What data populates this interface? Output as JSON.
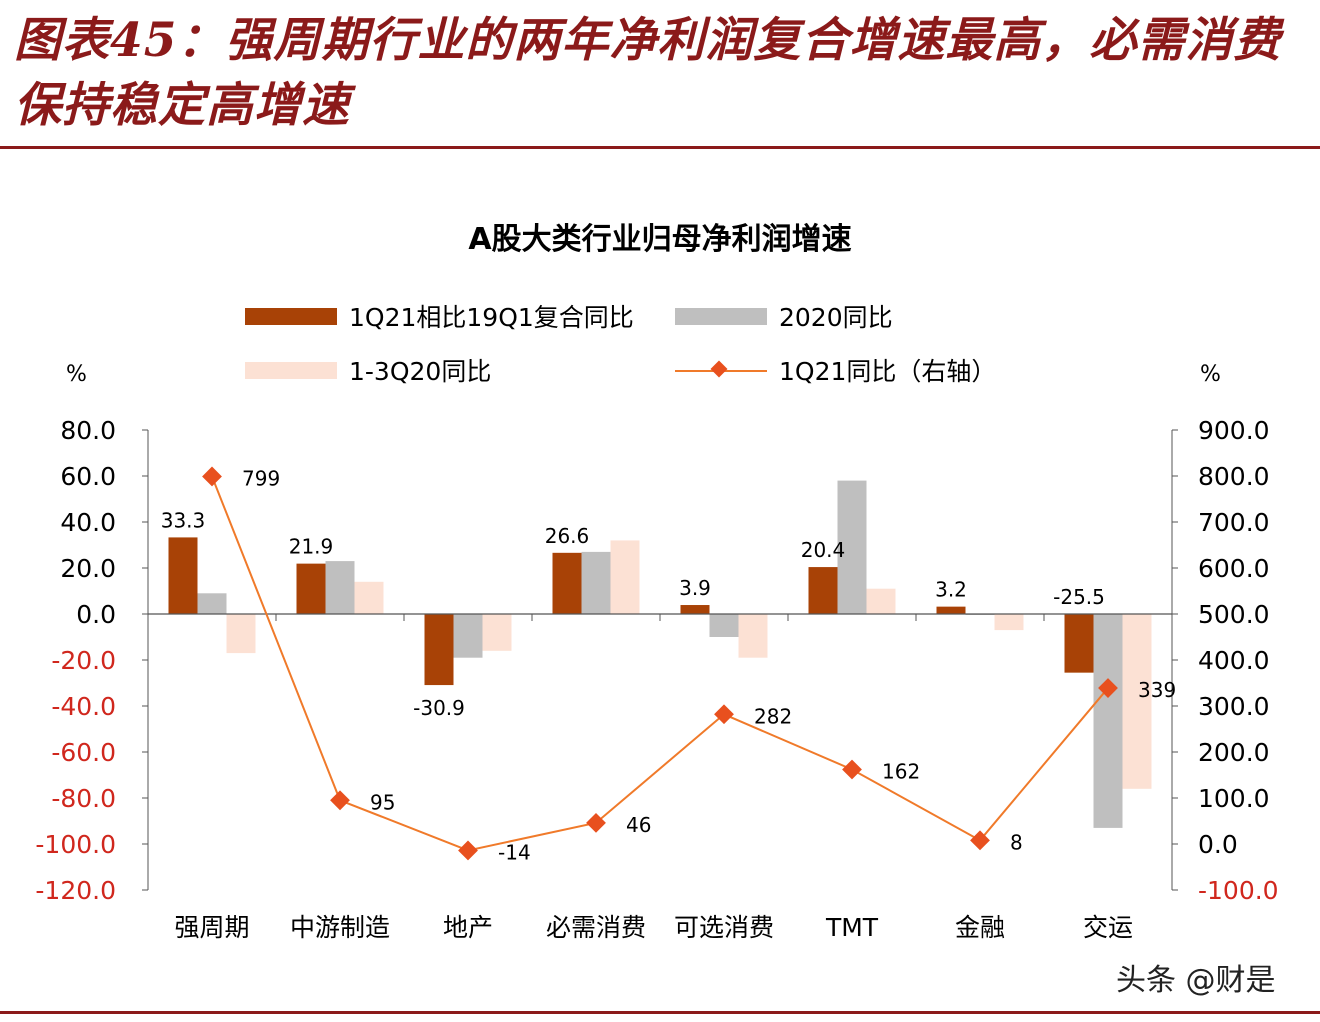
{
  "figure_title": "图表45：强周期行业的两年净利润复合增速最高，必需消费保持稳定高增速",
  "watermark": "头条 @财是",
  "colors": {
    "title": "#8b1a1a",
    "series_1q21_vs_19q1": "#a84206",
    "series_2020": "#bfbfbf",
    "series_1_3q20": "#fce1d4",
    "series_1q21_line": "#f07a2a",
    "series_1q21_marker": "#e8501e",
    "negative_tick": "#d0271d"
  },
  "chart_data": {
    "type": "bar",
    "title": "A股大类行业归母净利润增速",
    "ylabel_left": "%",
    "ylabel_right": "%",
    "categories": [
      "强周期",
      "中游制造",
      "地产",
      "必需消费",
      "可选消费",
      "TMT",
      "金融",
      "交运"
    ],
    "ylim_left": [
      -120,
      80
    ],
    "ylim_right": [
      -100,
      900
    ],
    "yticks_left": [
      "80.0",
      "60.0",
      "40.0",
      "20.0",
      "0.0",
      "-20.0",
      "-40.0",
      "-60.0",
      "-80.0",
      "-100.0",
      "-120.0"
    ],
    "yticks_right": [
      "900.0",
      "800.0",
      "700.0",
      "600.0",
      "500.0",
      "400.0",
      "300.0",
      "200.0",
      "100.0",
      "0.0",
      "-100.0"
    ],
    "legend_placement": "top",
    "series": [
      {
        "name": "1Q21相比19Q1复合同比",
        "type": "bar",
        "axis": "left",
        "values": [
          33.3,
          21.9,
          -30.9,
          26.6,
          3.9,
          20.4,
          3.2,
          -25.5
        ],
        "labels": [
          "33.3",
          "21.9",
          "-30.9",
          "26.6",
          "3.9",
          "20.4",
          "3.2",
          "-25.5"
        ]
      },
      {
        "name": "2020同比",
        "type": "bar",
        "axis": "left",
        "values": [
          9,
          23,
          -19,
          27,
          -10,
          58,
          0,
          -93
        ]
      },
      {
        "name": "1-3Q20同比",
        "type": "bar",
        "axis": "left",
        "values": [
          -17,
          14,
          -16,
          32,
          -19,
          11,
          -7,
          -76
        ]
      },
      {
        "name": "1Q21同比（右轴）",
        "type": "line",
        "axis": "right",
        "values": [
          799,
          95,
          -14,
          46,
          282,
          162,
          8,
          339
        ],
        "labels": [
          "799",
          "95",
          "-14",
          "46",
          "282",
          "162",
          "8",
          "339"
        ]
      }
    ]
  }
}
